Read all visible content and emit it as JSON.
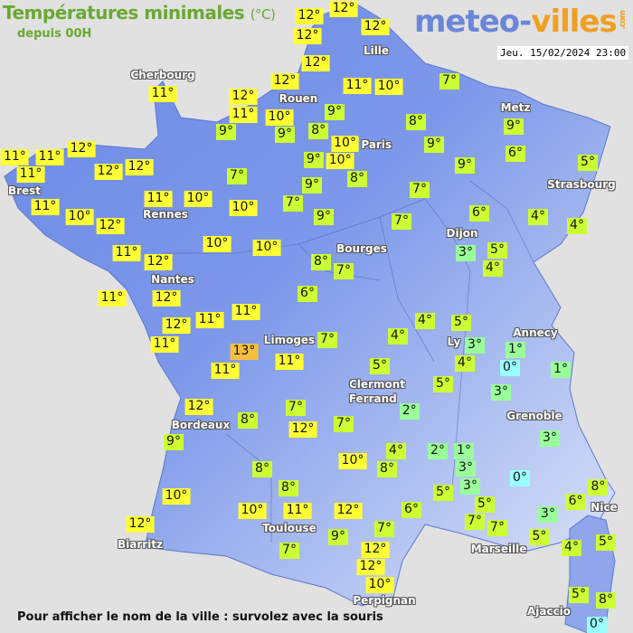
{
  "header": {
    "title": "Températures minimales",
    "unit": "(°C)",
    "subtitle": "depuis 00H",
    "logo_part1": "meteo-",
    "logo_part2": "villes",
    "logo_suffix": ".com",
    "datetime": "Jeu. 15/02/2024 23:00"
  },
  "footer": {
    "hint": "Pour afficher le nom de la ville : survolez avec la souris"
  },
  "colors": {
    "background": "#e1e1e1",
    "land_west": "#6b8ae6",
    "land_east": "#b8c8f0",
    "title_green": "#6aa832",
    "temp_13": "#f5c040",
    "temp_10_12": "#ffff33",
    "temp_4_9": "#ccff33",
    "temp_1_3": "#99ff99",
    "temp_0": "#99ffff"
  },
  "cities": [
    "Lille",
    "Cherbourg",
    "Rouen",
    "Metz",
    "Paris",
    "Brest",
    "Strasbourg",
    "Rennes",
    "Dijon",
    "Bourges",
    "Nantes",
    "Limoges",
    "Annecy",
    "Ly",
    "Clermont",
    "Ferrand",
    "Grenoble",
    "Bordeaux",
    "Toulouse",
    "Nice",
    "Biarritz",
    "Marseille",
    "Perpignan",
    "Ajaccio"
  ],
  "temperatures": [
    "12°",
    "12°",
    "12°",
    "12°",
    "12°",
    "12°",
    "11°",
    "10°",
    "7°",
    "11°",
    "12°",
    "11°",
    "10°",
    "9°",
    "9°",
    "9°",
    "8°",
    "8°",
    "9°",
    "10°",
    "9°",
    "12°",
    "6°",
    "11°",
    "11°",
    "11°",
    "12°",
    "12°",
    "9°",
    "10°",
    "9°",
    "5°",
    "8°",
    "7°",
    "9°",
    "7°",
    "11°",
    "11°",
    "10°",
    "10°",
    "7°",
    "6°",
    "10°",
    "12°",
    "9°",
    "7°",
    "4°",
    "4°",
    "10°",
    "10°",
    "11°",
    "3°",
    "5°",
    "12°",
    "8°",
    "4°",
    "7°",
    "11°",
    "12°",
    "6°",
    "11°",
    "4°",
    "5°",
    "12°",
    "11°",
    "7°",
    "4°",
    "1°",
    "3°",
    "11°",
    "13°",
    "4°",
    "0°",
    "1°",
    "11°",
    "11°",
    "5°",
    "5°",
    "3°",
    "12°",
    "7°",
    "2°",
    "8°",
    "12°",
    "7°",
    "9°",
    "3°",
    "4°",
    "2°",
    "1°",
    "10°",
    "8°",
    "3°",
    "0°",
    "8°",
    "3°",
    "5°",
    "8°",
    "8°",
    "6°",
    "10°",
    "5°",
    "6°",
    "10°",
    "11°",
    "12°",
    "3°",
    "7°",
    "12°",
    "7°",
    "7°",
    "9°",
    "5°",
    "4°",
    "5°",
    "7°",
    "12°",
    "12°",
    "10°",
    "5°",
    "8°",
    "0°"
  ]
}
